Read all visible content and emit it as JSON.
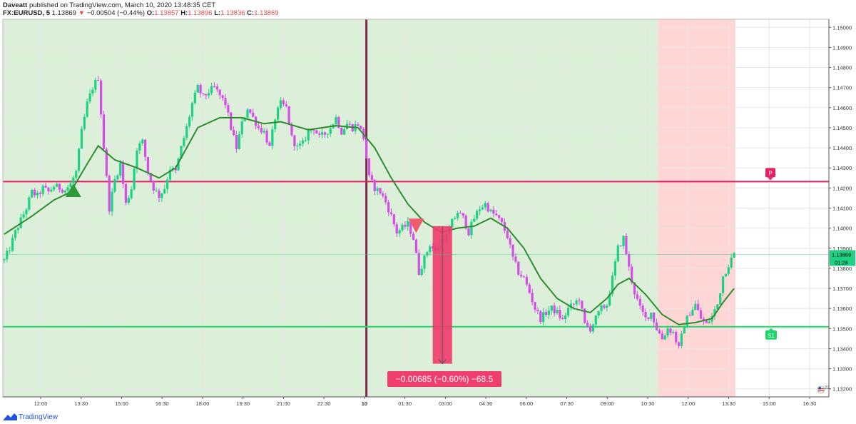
{
  "header": {
    "author": "Daveatt",
    "published_text": "published on TradingView.com, March 10, 2020 13:48:35 CET",
    "symbol": "FX:EURUSD, 5",
    "last": "1.13869",
    "arrow": "▼",
    "change": "−0.00504 (−0.44%)",
    "o_label": "O:",
    "o_value": "1.13857",
    "h_label": "H:",
    "h_value": "1.13896",
    "l_label": "L:",
    "l_value": "1.13836",
    "c_label": "C:",
    "c_value": "1.13869"
  },
  "footer": {
    "brand": "TradingView",
    "icon": "tradingview-logo-icon"
  },
  "chart_data": {
    "type": "candlestick",
    "x_ticks": [
      "12:00",
      "13:30",
      "15:00",
      "16:30",
      "18:00",
      "19:30",
      "21:00",
      "22:30",
      "10",
      "01:30",
      "03:00",
      "04:30",
      "06:00",
      "07:30",
      "09:00",
      "10:30",
      "12:00",
      "13:30",
      "15:00",
      "16:30"
    ],
    "y_ticks": [
      "1.15000",
      "1.14900",
      "1.14800",
      "1.14700",
      "1.14600",
      "1.14500",
      "1.14400",
      "1.14300",
      "1.14200",
      "1.14100",
      "1.14000",
      "1.13900",
      "1.13800",
      "1.13700",
      "1.13600",
      "1.13500",
      "1.13400",
      "1.13300",
      "1.13200"
    ],
    "ylim": [
      1.1316,
      1.1504
    ],
    "price_path": [
      [
        0,
        1.1384
      ],
      [
        2,
        1.139
      ],
      [
        4,
        1.1398
      ],
      [
        6,
        1.1404
      ],
      [
        8,
        1.141
      ],
      [
        10,
        1.1418
      ],
      [
        12,
        1.1416
      ],
      [
        14,
        1.142
      ],
      [
        16,
        1.1418
      ],
      [
        18,
        1.1421
      ],
      [
        20,
        1.142
      ],
      [
        22,
        1.1419
      ],
      [
        24,
        1.1422
      ],
      [
        26,
        1.1428
      ],
      [
        28,
        1.1448
      ],
      [
        30,
        1.1462
      ],
      [
        32,
        1.147
      ],
      [
        34,
        1.1475
      ],
      [
        36,
        1.144
      ],
      [
        38,
        1.141
      ],
      [
        40,
        1.1424
      ],
      [
        42,
        1.1432
      ],
      [
        44,
        1.1412
      ],
      [
        46,
        1.142
      ],
      [
        48,
        1.144
      ],
      [
        50,
        1.1443
      ],
      [
        52,
        1.1428
      ],
      [
        54,
        1.142
      ],
      [
        56,
        1.1416
      ],
      [
        58,
        1.142
      ],
      [
        60,
        1.143
      ],
      [
        62,
        1.1428
      ],
      [
        64,
        1.144
      ],
      [
        66,
        1.145
      ],
      [
        68,
        1.1462
      ],
      [
        70,
        1.147
      ],
      [
        72,
        1.1465
      ],
      [
        74,
        1.1468
      ],
      [
        76,
        1.147
      ],
      [
        78,
        1.1466
      ],
      [
        80,
        1.1462
      ],
      [
        82,
        1.145
      ],
      [
        84,
        1.144
      ],
      [
        86,
        1.1452
      ],
      [
        88,
        1.146
      ],
      [
        90,
        1.1455
      ],
      [
        92,
        1.145
      ],
      [
        94,
        1.1448
      ],
      [
        96,
        1.144
      ],
      [
        98,
        1.1455
      ],
      [
        100,
        1.1462
      ],
      [
        102,
        1.146
      ],
      [
        104,
        1.1445
      ],
      [
        106,
        1.144
      ],
      [
        108,
        1.1442
      ],
      [
        110,
        1.1448
      ],
      [
        112,
        1.145
      ],
      [
        114,
        1.1445
      ],
      [
        116,
        1.1447
      ],
      [
        118,
        1.145
      ],
      [
        120,
        1.1455
      ],
      [
        122,
        1.1448
      ],
      [
        124,
        1.1452
      ],
      [
        126,
        1.145
      ],
      [
        128,
        1.1452
      ],
      [
        130,
        1.1445
      ],
      [
        132,
        1.1425
      ],
      [
        134,
        1.142
      ],
      [
        136,
        1.1418
      ],
      [
        138,
        1.1413
      ],
      [
        140,
        1.1406
      ],
      [
        142,
        1.1398
      ],
      [
        144,
        1.14
      ],
      [
        146,
        1.1402
      ],
      [
        148,
        1.1395
      ],
      [
        150,
        1.1378
      ],
      [
        152,
        1.1385
      ],
      [
        154,
        1.1392
      ],
      [
        156,
        1.1388
      ],
      [
        158,
        1.1394
      ],
      [
        160,
        1.1396
      ],
      [
        162,
        1.1403
      ],
      [
        164,
        1.1408
      ],
      [
        166,
        1.1405
      ],
      [
        168,
        1.1398
      ],
      [
        170,
        1.1405
      ],
      [
        172,
        1.141
      ],
      [
        174,
        1.1412
      ],
      [
        176,
        1.1408
      ],
      [
        178,
        1.1406
      ],
      [
        180,
        1.1402
      ],
      [
        182,
        1.1396
      ],
      [
        184,
        1.1385
      ],
      [
        186,
        1.1378
      ],
      [
        188,
        1.1375
      ],
      [
        190,
        1.1368
      ],
      [
        192,
        1.136
      ],
      [
        194,
        1.1355
      ],
      [
        196,
        1.1358
      ],
      [
        198,
        1.136
      ],
      [
        200,
        1.1358
      ],
      [
        202,
        1.1354
      ],
      [
        204,
        1.136
      ],
      [
        206,
        1.1362
      ],
      [
        208,
        1.1365
      ],
      [
        210,
        1.1352
      ],
      [
        212,
        1.135
      ],
      [
        214,
        1.1355
      ],
      [
        216,
        1.136
      ],
      [
        218,
        1.1362
      ],
      [
        220,
        1.1375
      ],
      [
        222,
        1.139
      ],
      [
        224,
        1.1395
      ],
      [
        226,
        1.138
      ],
      [
        228,
        1.1368
      ],
      [
        230,
        1.136
      ],
      [
        232,
        1.1355
      ],
      [
        234,
        1.1358
      ],
      [
        236,
        1.135
      ],
      [
        238,
        1.1345
      ],
      [
        240,
        1.135
      ],
      [
        242,
        1.1348
      ],
      [
        244,
        1.134
      ],
      [
        246,
        1.1352
      ],
      [
        248,
        1.1358
      ],
      [
        250,
        1.1362
      ],
      [
        252,
        1.1355
      ],
      [
        254,
        1.1352
      ],
      [
        256,
        1.1356
      ],
      [
        258,
        1.1362
      ],
      [
        260,
        1.1376
      ],
      [
        262,
        1.1382
      ],
      [
        264,
        1.1387
      ]
    ],
    "sma": [
      [
        0,
        1.1397
      ],
      [
        10,
        1.1406
      ],
      [
        18,
        1.1414
      ],
      [
        24,
        1.1418
      ],
      [
        30,
        1.1432
      ],
      [
        34,
        1.1441
      ],
      [
        40,
        1.1434
      ],
      [
        48,
        1.143
      ],
      [
        56,
        1.1425
      ],
      [
        62,
        1.143
      ],
      [
        70,
        1.145
      ],
      [
        78,
        1.1455
      ],
      [
        86,
        1.1455
      ],
      [
        94,
        1.1452
      ],
      [
        100,
        1.1453
      ],
      [
        110,
        1.1449
      ],
      [
        120,
        1.1451
      ],
      [
        128,
        1.145
      ],
      [
        134,
        1.144
      ],
      [
        140,
        1.1425
      ],
      [
        146,
        1.1412
      ],
      [
        152,
        1.1403
      ],
      [
        158,
        1.1398
      ],
      [
        164,
        1.14
      ],
      [
        170,
        1.1401
      ],
      [
        176,
        1.1405
      ],
      [
        182,
        1.14
      ],
      [
        188,
        1.139
      ],
      [
        194,
        1.1375
      ],
      [
        200,
        1.1365
      ],
      [
        206,
        1.136
      ],
      [
        212,
        1.1358
      ],
      [
        218,
        1.1365
      ],
      [
        222,
        1.1372
      ],
      [
        226,
        1.1375
      ],
      [
        232,
        1.1367
      ],
      [
        238,
        1.1357
      ],
      [
        244,
        1.1352
      ],
      [
        250,
        1.1353
      ],
      [
        256,
        1.1355
      ],
      [
        260,
        1.1363
      ],
      [
        264,
        1.137
      ]
    ],
    "pivot_p": 1.14232,
    "support_s1": 1.13509,
    "last_price": 1.13869,
    "last_price_label": "1.13869",
    "countdown_label": "01:26",
    "pivot_label": "P",
    "s1_label": "S1",
    "buy_signal_bar": 25,
    "sell_signal_bar": 149,
    "session_divider_bar": 131,
    "green_bg_range": [
      0,
      237
    ],
    "red_bg_range": [
      237,
      264
    ],
    "measure": {
      "bar_start": 155,
      "bar_end": 162,
      "price_from": 1.1401,
      "price_to": 1.13325,
      "label": "−0.00685 (−0.60%) −68.5"
    },
    "colors": {
      "bull": "#1fd183",
      "bear": "#d64ee8",
      "sma": "#2e8b2e",
      "pivot": "#e91e63",
      "support": "#1ed769",
      "green_bg": "#dcefd9",
      "red_bg": "#ffd6d6",
      "divider": "#7a2a4a",
      "buy": "#2e9a3e",
      "sell": "#f25a6e",
      "measure": "#ef3e6e"
    },
    "legend_icon": "us-flag-icon",
    "legend_badge": "22"
  }
}
